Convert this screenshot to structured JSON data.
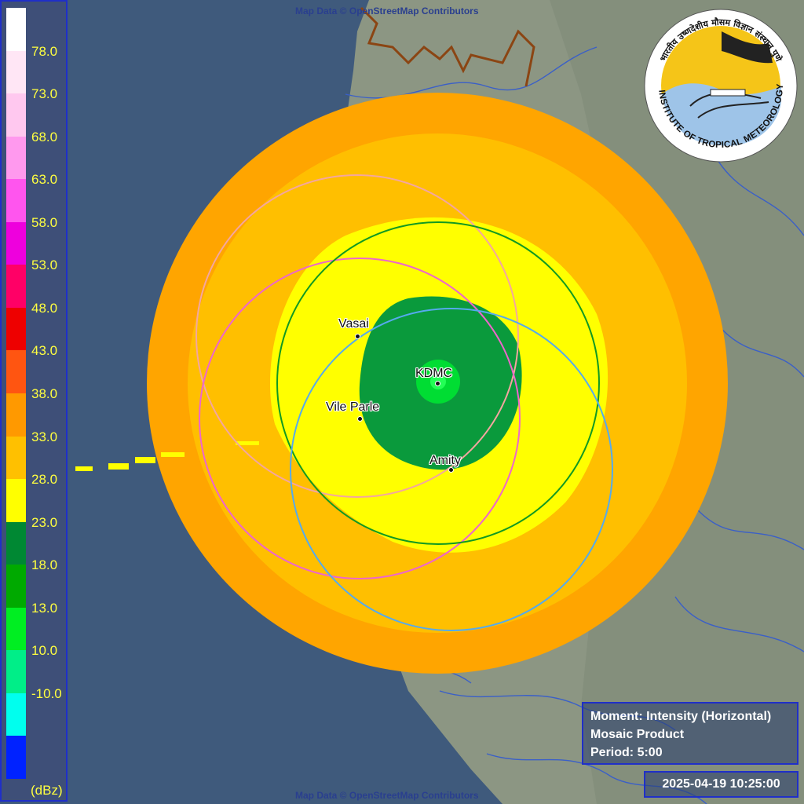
{
  "legend": {
    "unit": "(dBz)",
    "ticks": [
      "78.0",
      "73.0",
      "68.0",
      "63.0",
      "58.0",
      "53.0",
      "48.0",
      "43.0",
      "38.0",
      "33.0",
      "28.0",
      "23.0",
      "18.0",
      "13.0",
      "10.0",
      "-10.0"
    ],
    "colors": [
      "#ffffff",
      "#ffe6f5",
      "#ffc8ef",
      "#ff99ee",
      "#ff55ee",
      "#ee00dd",
      "#ff0066",
      "#ee0000",
      "#ff5511",
      "#ff9900",
      "#ffc000",
      "#ffff00",
      "#008833",
      "#00aa00",
      "#00ee22",
      "#00ee88",
      "#00ffee",
      "#0022ff"
    ]
  },
  "stations": [
    {
      "name": "Vasai"
    },
    {
      "name": "KDMC"
    },
    {
      "name": "Vile Parle"
    },
    {
      "name": "Amity"
    }
  ],
  "attribution": "Map Data © OpenStreetMap Contributors",
  "info": {
    "moment": "Moment: Intensity (Horizontal)",
    "product": "Mosaic Product",
    "period": "Period: 5:00"
  },
  "timestamp": "2025-04-19 10:25:00",
  "logo": {
    "name": "INDIAN INSTITUTE OF TROPICAL METEOROLOGY PUNE",
    "hindi_name": "भारतीय उष्णदेशीय मौसम विज्ञान संस्थान पुणे"
  },
  "colors": {
    "sea": "#3f5a7c",
    "land": "#8a9580",
    "outer_ring": "#ffa500",
    "mid_ring": "#ffc000",
    "inner_zone": "#ffff00",
    "core_dark": "#0a9a3c",
    "core_light": "#00dd33",
    "frame": "#1f2fc8"
  }
}
